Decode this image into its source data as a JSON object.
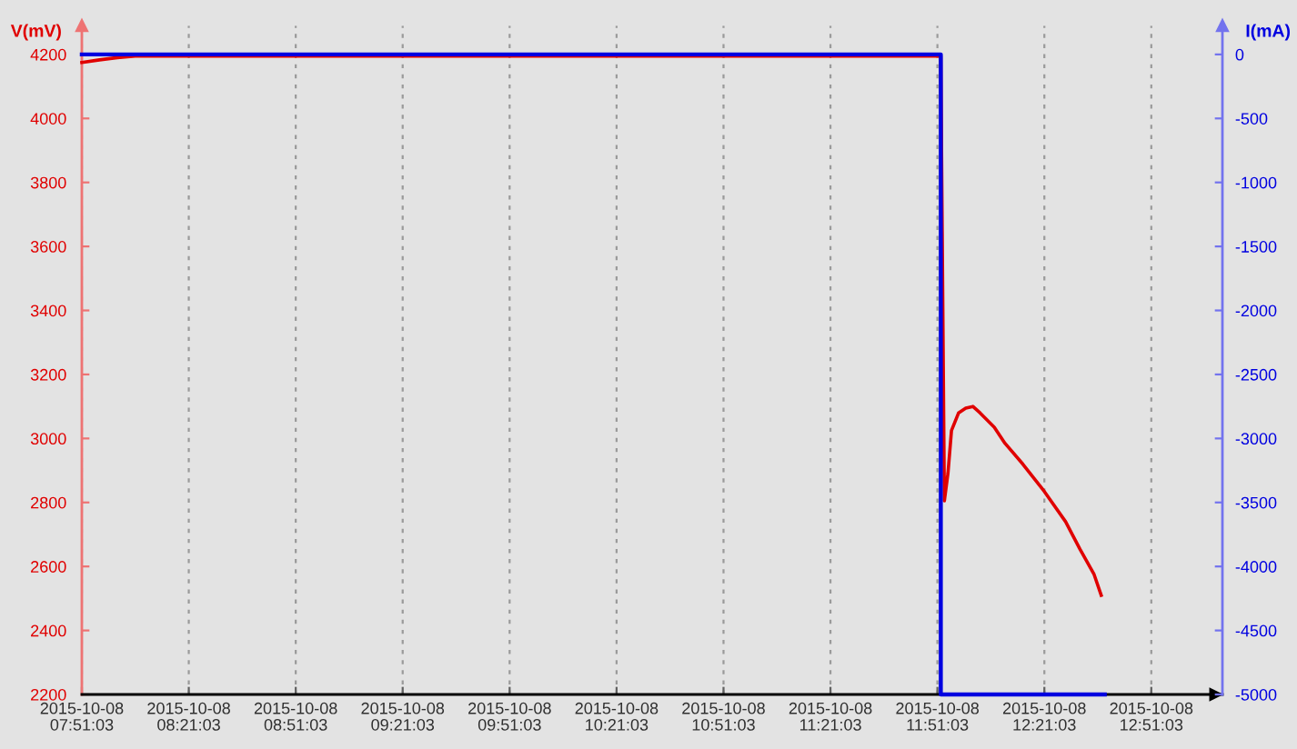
{
  "chart_data": {
    "type": "line",
    "ylabel": "V(mV)",
    "y2label": "I(mA)",
    "xlim": [
      "2015-10-08T07:51:03",
      "2015-10-08T13:11"
    ],
    "xticks": [
      {
        "value": "2015-10-08T07:51:03",
        "label": "2015-10-08\n07:51:03"
      },
      {
        "value": "2015-10-08T08:21:03",
        "label": "2015-10-08\n08:21:03"
      },
      {
        "value": "2015-10-08T08:51:03",
        "label": "2015-10-08\n08:51:03"
      },
      {
        "value": "2015-10-08T09:21:03",
        "label": "2015-10-08\n09:21:03"
      },
      {
        "value": "2015-10-08T09:51:03",
        "label": "2015-10-08\n09:51:03"
      },
      {
        "value": "2015-10-08T10:21:03",
        "label": "2015-10-08\n10:21:03"
      },
      {
        "value": "2015-10-08T10:51:03",
        "label": "2015-10-08\n10:51:03"
      },
      {
        "value": "2015-10-08T11:21:03",
        "label": "2015-10-08\n11:21:03"
      },
      {
        "value": "2015-10-08T11:51:03",
        "label": "2015-10-08\n11:51:03"
      },
      {
        "value": "2015-10-08T12:21:03",
        "label": "2015-10-08\n12:21:03"
      },
      {
        "value": "2015-10-08T12:51:03",
        "label": "2015-10-08\n12:51:03"
      }
    ],
    "ylim": [
      2200,
      4290
    ],
    "yticks": [
      2200,
      2400,
      2600,
      2800,
      3000,
      3200,
      3400,
      3600,
      3800,
      4000,
      4200
    ],
    "y2lim": [
      -5000,
      225
    ],
    "y2ticks": [
      0,
      -500,
      -1000,
      -1500,
      -2000,
      -2500,
      -3000,
      -3500,
      -4000,
      -4500,
      -5000
    ],
    "grid": "x",
    "marker": "none",
    "line_style": "solid",
    "series": [
      {
        "color": "#e00000",
        "x": [
          "2015-10-08T07:51:03",
          "2015-10-08T07:56",
          "2015-10-08T08:01",
          "2015-10-08T08:06",
          "2015-10-08T11:52",
          "2015-10-08T11:53",
          "2015-10-08T11:54",
          "2015-10-08T11:55",
          "2015-10-08T11:57",
          "2015-10-08T11:59",
          "2015-10-08T12:01",
          "2015-10-08T12:03",
          "2015-10-08T12:07",
          "2015-10-08T12:10",
          "2015-10-08T12:15",
          "2015-10-08T12:21",
          "2015-10-08T12:27",
          "2015-10-08T12:31",
          "2015-10-08T12:35",
          "2015-10-08T12:37"
        ],
        "values": [
          4175,
          4183,
          4190,
          4195,
          4195,
          2805,
          2890,
          3025,
          3080,
          3095,
          3100,
          3080,
          3035,
          2985,
          2920,
          2835,
          2740,
          2655,
          2575,
          2510
        ]
      },
      {
        "color": "#0000e0",
        "axis": "y2",
        "x": [
          "2015-10-08T07:51:03",
          "2015-10-08T11:52",
          "2015-10-08T11:52",
          "2015-10-08T12:38"
        ],
        "values": [
          0,
          0,
          -5000,
          -5000
        ]
      }
    ]
  }
}
